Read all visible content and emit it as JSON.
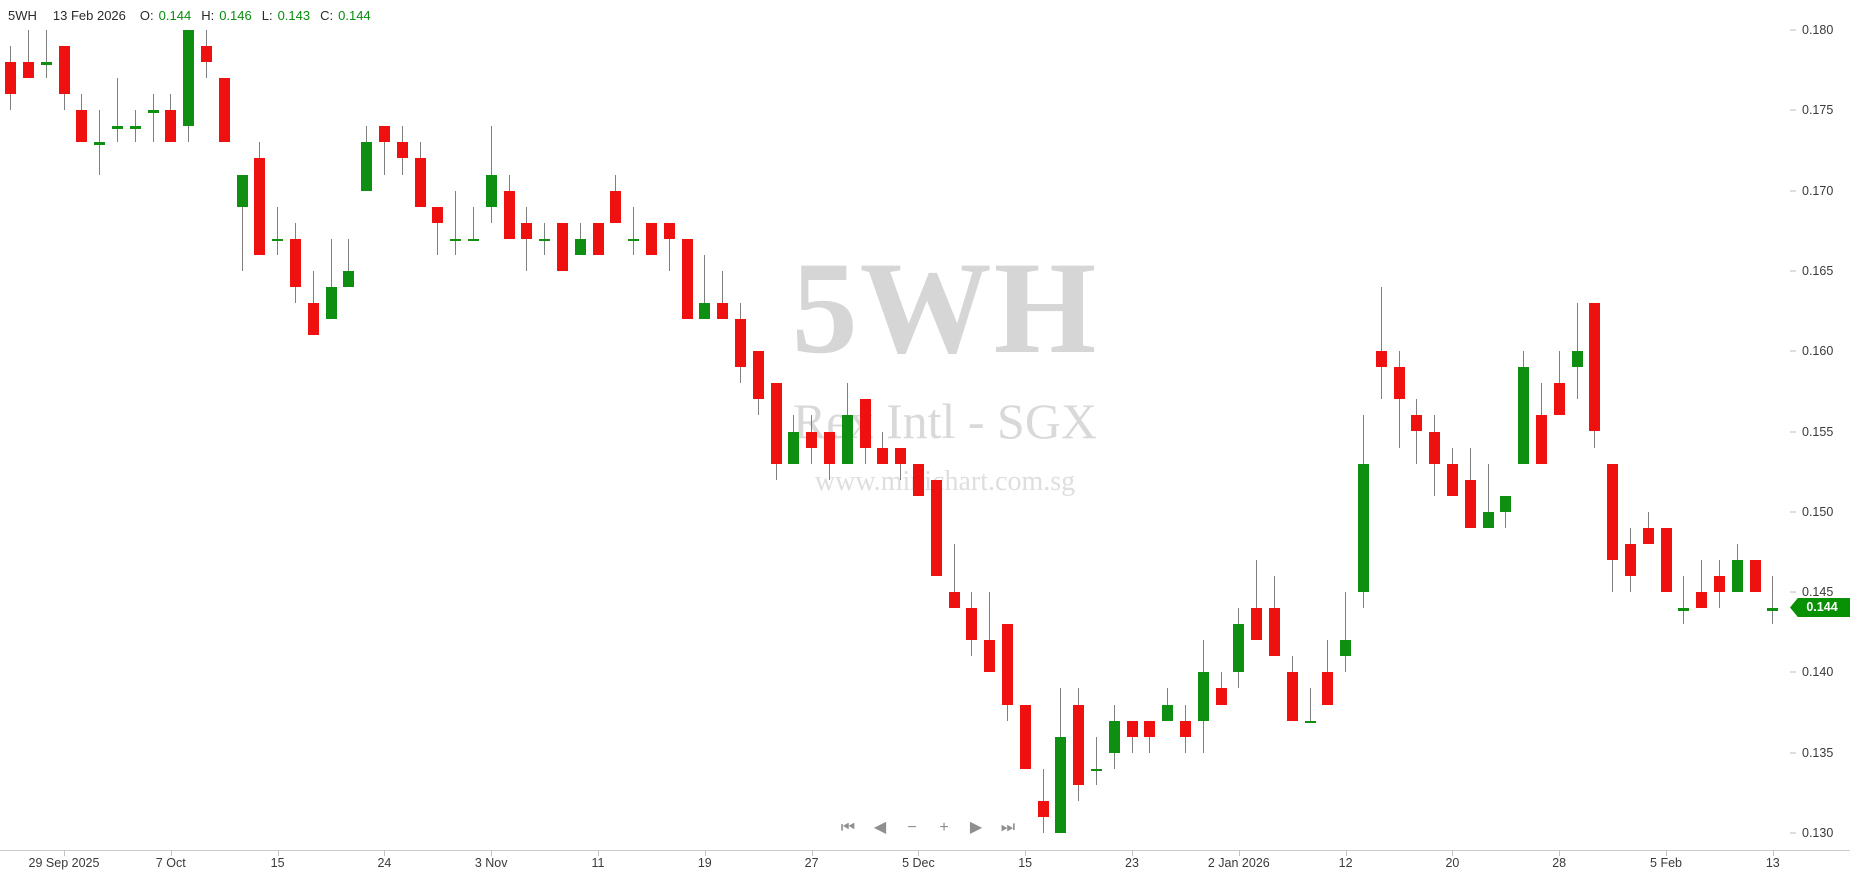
{
  "legend": {
    "symbol": "5WH",
    "date": "13 Feb 2026",
    "open_label": "O:",
    "open": "0.144",
    "high_label": "H:",
    "high": "0.146",
    "low_label": "L:",
    "low": "0.143",
    "close_label": "C:",
    "close": "0.144"
  },
  "watermark": {
    "line1": "5WH",
    "line2": "Rex Intl - SGX",
    "line3": "www.minichart.com.sg"
  },
  "price_badge": "0.144",
  "toolbar": {
    "items": [
      {
        "name": "skip-to-start-icon",
        "glyph": "⏮"
      },
      {
        "name": "step-back-icon",
        "glyph": "◀"
      },
      {
        "name": "zoom-out-icon",
        "glyph": "−"
      },
      {
        "name": "zoom-in-icon",
        "glyph": "+"
      },
      {
        "name": "step-forward-icon",
        "glyph": "▶"
      },
      {
        "name": "skip-to-end-icon",
        "glyph": "⏭"
      }
    ]
  },
  "colors": {
    "up": "#0e8f12",
    "down": "#ef1010",
    "wick": "#7f7f7f",
    "badge": "#089104",
    "watermark": "#d8d8d8",
    "axis_text": "#3a3a3a"
  },
  "chart_data": {
    "type": "candlestick",
    "title": "5WH Rex Intl - SGX",
    "subtitle": "www.minichart.com.sg",
    "last_price": 0.144,
    "y_axis": {
      "side": "right",
      "min": 0.13,
      "max": 0.18,
      "labels": [
        0.18,
        0.175,
        0.17,
        0.165,
        0.16,
        0.155,
        0.15,
        0.145,
        0.14,
        0.135,
        0.13
      ]
    },
    "x_axis": {
      "labels": [
        {
          "text": "29 Sep 2025",
          "candle_index": 3
        },
        {
          "text": "7 Oct",
          "candle_index": 9
        },
        {
          "text": "15",
          "candle_index": 15
        },
        {
          "text": "24",
          "candle_index": 21
        },
        {
          "text": "3 Nov",
          "candle_index": 27
        },
        {
          "text": "11",
          "candle_index": 33
        },
        {
          "text": "19",
          "candle_index": 39
        },
        {
          "text": "27",
          "candle_index": 45
        },
        {
          "text": "5 Dec",
          "candle_index": 51
        },
        {
          "text": "15",
          "candle_index": 57
        },
        {
          "text": "23",
          "candle_index": 63
        },
        {
          "text": "2 Jan 2026",
          "candle_index": 69
        },
        {
          "text": "12",
          "candle_index": 75
        },
        {
          "text": "20",
          "candle_index": 81
        },
        {
          "text": "28",
          "candle_index": 87
        },
        {
          "text": "5 Feb",
          "candle_index": 93
        },
        {
          "text": "13",
          "candle_index": 99
        }
      ]
    },
    "candles_format": [
      "open",
      "high",
      "low",
      "close"
    ],
    "candles": [
      [
        0.178,
        0.179,
        0.175,
        0.176
      ],
      [
        0.178,
        0.18,
        0.177,
        0.177
      ],
      [
        0.178,
        0.18,
        0.177,
        0.178
      ],
      [
        0.179,
        0.179,
        0.175,
        0.176
      ],
      [
        0.175,
        0.176,
        0.173,
        0.173
      ],
      [
        0.173,
        0.175,
        0.171,
        0.173
      ],
      [
        0.174,
        0.177,
        0.173,
        0.174
      ],
      [
        0.174,
        0.175,
        0.173,
        0.174
      ],
      [
        0.175,
        0.176,
        0.173,
        0.175
      ],
      [
        0.175,
        0.176,
        0.173,
        0.173
      ],
      [
        0.174,
        0.18,
        0.173,
        0.18
      ],
      [
        0.179,
        0.18,
        0.177,
        0.178
      ],
      [
        0.177,
        0.177,
        0.173,
        0.173
      ],
      [
        0.169,
        0.171,
        0.165,
        0.171
      ],
      [
        0.172,
        0.173,
        0.166,
        0.166
      ],
      [
        0.167,
        0.169,
        0.166,
        0.167
      ],
      [
        0.167,
        0.168,
        0.163,
        0.164
      ],
      [
        0.163,
        0.165,
        0.161,
        0.161
      ],
      [
        0.162,
        0.167,
        0.162,
        0.164
      ],
      [
        0.164,
        0.167,
        0.164,
        0.165
      ],
      [
        0.17,
        0.174,
        0.17,
        0.173
      ],
      [
        0.174,
        0.174,
        0.171,
        0.173
      ],
      [
        0.173,
        0.174,
        0.171,
        0.172
      ],
      [
        0.172,
        0.173,
        0.169,
        0.169
      ],
      [
        0.169,
        0.169,
        0.166,
        0.168
      ],
      [
        0.167,
        0.17,
        0.166,
        0.167
      ],
      [
        0.167,
        0.169,
        0.167,
        0.167
      ],
      [
        0.169,
        0.174,
        0.168,
        0.171
      ],
      [
        0.17,
        0.171,
        0.167,
        0.167
      ],
      [
        0.168,
        0.169,
        0.165,
        0.167
      ],
      [
        0.167,
        0.168,
        0.166,
        0.167
      ],
      [
        0.168,
        0.168,
        0.165,
        0.165
      ],
      [
        0.166,
        0.168,
        0.166,
        0.167
      ],
      [
        0.168,
        0.168,
        0.166,
        0.166
      ],
      [
        0.17,
        0.171,
        0.168,
        0.168
      ],
      [
        0.167,
        0.169,
        0.166,
        0.167
      ],
      [
        0.168,
        0.168,
        0.166,
        0.166
      ],
      [
        0.168,
        0.168,
        0.165,
        0.167
      ],
      [
        0.167,
        0.167,
        0.162,
        0.162
      ],
      [
        0.162,
        0.166,
        0.162,
        0.163
      ],
      [
        0.163,
        0.165,
        0.162,
        0.162
      ],
      [
        0.162,
        0.163,
        0.158,
        0.159
      ],
      [
        0.16,
        0.16,
        0.156,
        0.157
      ],
      [
        0.158,
        0.158,
        0.152,
        0.153
      ],
      [
        0.153,
        0.156,
        0.153,
        0.155
      ],
      [
        0.155,
        0.156,
        0.153,
        0.154
      ],
      [
        0.155,
        0.155,
        0.152,
        0.153
      ],
      [
        0.153,
        0.158,
        0.153,
        0.156
      ],
      [
        0.157,
        0.157,
        0.153,
        0.154
      ],
      [
        0.154,
        0.155,
        0.153,
        0.153
      ],
      [
        0.154,
        0.154,
        0.152,
        0.153
      ],
      [
        0.153,
        0.153,
        0.151,
        0.151
      ],
      [
        0.152,
        0.152,
        0.146,
        0.146
      ],
      [
        0.145,
        0.148,
        0.144,
        0.144
      ],
      [
        0.144,
        0.145,
        0.141,
        0.142
      ],
      [
        0.142,
        0.145,
        0.14,
        0.14
      ],
      [
        0.143,
        0.143,
        0.137,
        0.138
      ],
      [
        0.138,
        0.138,
        0.134,
        0.134
      ],
      [
        0.132,
        0.134,
        0.13,
        0.131
      ],
      [
        0.13,
        0.139,
        0.13,
        0.136
      ],
      [
        0.138,
        0.139,
        0.132,
        0.133
      ],
      [
        0.134,
        0.136,
        0.133,
        0.134
      ],
      [
        0.135,
        0.138,
        0.134,
        0.137
      ],
      [
        0.137,
        0.137,
        0.135,
        0.136
      ],
      [
        0.137,
        0.137,
        0.135,
        0.136
      ],
      [
        0.137,
        0.139,
        0.137,
        0.138
      ],
      [
        0.137,
        0.138,
        0.135,
        0.136
      ],
      [
        0.137,
        0.142,
        0.135,
        0.14
      ],
      [
        0.139,
        0.14,
        0.138,
        0.138
      ],
      [
        0.14,
        0.144,
        0.139,
        0.143
      ],
      [
        0.144,
        0.147,
        0.142,
        0.142
      ],
      [
        0.144,
        0.146,
        0.141,
        0.141
      ],
      [
        0.14,
        0.141,
        0.137,
        0.137
      ],
      [
        0.137,
        0.139,
        0.137,
        0.137
      ],
      [
        0.14,
        0.142,
        0.138,
        0.138
      ],
      [
        0.141,
        0.145,
        0.14,
        0.142
      ],
      [
        0.145,
        0.156,
        0.144,
        0.153
      ],
      [
        0.16,
        0.164,
        0.157,
        0.159
      ],
      [
        0.159,
        0.16,
        0.154,
        0.157
      ],
      [
        0.156,
        0.157,
        0.153,
        0.155
      ],
      [
        0.155,
        0.156,
        0.151,
        0.153
      ],
      [
        0.153,
        0.154,
        0.151,
        0.151
      ],
      [
        0.152,
        0.154,
        0.149,
        0.149
      ],
      [
        0.149,
        0.153,
        0.149,
        0.15
      ],
      [
        0.15,
        0.151,
        0.149,
        0.151
      ],
      [
        0.153,
        0.16,
        0.153,
        0.159
      ],
      [
        0.156,
        0.158,
        0.153,
        0.153
      ],
      [
        0.158,
        0.16,
        0.156,
        0.156
      ],
      [
        0.159,
        0.163,
        0.157,
        0.16
      ],
      [
        0.163,
        0.163,
        0.154,
        0.155
      ],
      [
        0.153,
        0.153,
        0.145,
        0.147
      ],
      [
        0.148,
        0.149,
        0.145,
        0.146
      ],
      [
        0.149,
        0.15,
        0.148,
        0.148
      ],
      [
        0.149,
        0.149,
        0.145,
        0.145
      ],
      [
        0.144,
        0.146,
        0.143,
        0.144
      ],
      [
        0.145,
        0.147,
        0.144,
        0.144
      ],
      [
        0.146,
        0.147,
        0.144,
        0.145
      ],
      [
        0.145,
        0.148,
        0.145,
        0.147
      ],
      [
        0.147,
        0.147,
        0.145,
        0.145
      ],
      [
        0.144,
        0.146,
        0.143,
        0.144
      ]
    ]
  }
}
